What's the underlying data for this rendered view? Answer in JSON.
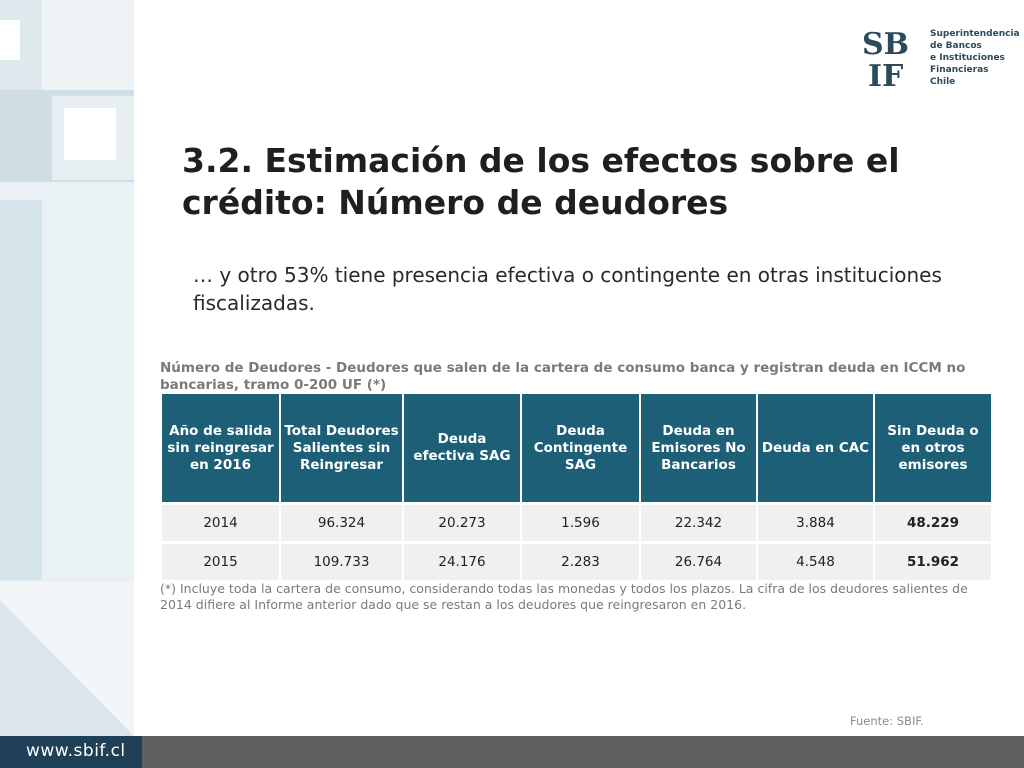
{
  "logo": {
    "mark": "SBIF",
    "lines": [
      "Superintendencia",
      "de Bancos",
      "e Instituciones",
      "Financieras",
      "Chile"
    ]
  },
  "title": "3.2. Estimación de los efectos sobre el crédito: Número de deudores",
  "subtitle": "… y otro 53% tiene presencia efectiva o contingente en otras instituciones fiscalizadas.",
  "caption": "Número de Deudores - Deudores que salen de la cartera de consumo banca y registran deuda en ICCM no bancarias, tramo 0-200 UF (*)",
  "table": {
    "headers": [
      "Año de salida sin reingresar en 2016",
      "Total Deudores Salientes sin Reingresar",
      "Deuda efectiva SAG",
      "Deuda Contingente SAG",
      "Deuda en Emisores No Bancarios",
      "Deuda en CAC",
      "Sin Deuda o en otros emisores"
    ],
    "rows": [
      [
        "2014",
        "96.324",
        "20.273",
        "1.596",
        "22.342",
        "3.884",
        "48.229"
      ],
      [
        "2015",
        "109.733",
        "24.176",
        "2.283",
        "26.764",
        "4.548",
        "51.962"
      ]
    ]
  },
  "note": "(*) Incluye toda la cartera de consumo, considerando todas las monedas y todos los plazos. La cifra de los deudores salientes de 2014 difiere al Informe anterior dado que se restan a los deudores que reingresaron en 2016.",
  "source": "Fuente: SBIF.",
  "footer": {
    "url": "www.sbif.cl"
  },
  "colors": {
    "header_bg": "#1e5f78",
    "footer_bar": "#5f5f5f",
    "url_box": "#1f3f57",
    "logo": "#2b4a5c"
  }
}
